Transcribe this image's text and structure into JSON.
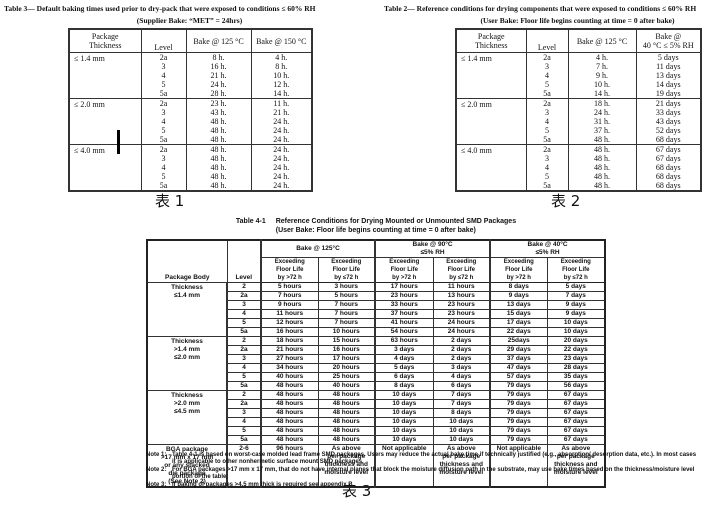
{
  "captions": {
    "table1": "表 1",
    "table2": "表 2",
    "table3": "表 3"
  },
  "table3": {
    "title": "Table 3— Default baking times used prior to dry-pack that were exposed to conditions ≤ 60% RH",
    "subtitle": "(Supplier Bake:  “MET” = 24hrs)",
    "columns": [
      "Package\nThickness",
      "Level",
      "Bake @ 125 °C",
      "Bake @ 150 °C"
    ],
    "groups": [
      {
        "thickness": "≤ 1.4 mm",
        "rows": [
          [
            "2a",
            "8 h.",
            "4 h."
          ],
          [
            "3",
            "16 h.",
            "8 h."
          ],
          [
            "4",
            "21 h.",
            "10 h."
          ],
          [
            "5",
            "24 h.",
            "12 h."
          ],
          [
            "5a",
            "28 h.",
            "14 h."
          ]
        ]
      },
      {
        "thickness": "≤ 2.0 mm",
        "rows": [
          [
            "2a",
            "23 h.",
            "11 h."
          ],
          [
            "3",
            "43 h.",
            "21 h."
          ],
          [
            "4",
            "48 h.",
            "24 h."
          ],
          [
            "5",
            "48 h.",
            "24 h."
          ],
          [
            "5a",
            "48 h.",
            "24 h."
          ]
        ]
      },
      {
        "thickness": "≤ 4.0 mm",
        "rows": [
          [
            "2a",
            "48 h.",
            "24 h."
          ],
          [
            "3",
            "48 h.",
            "24 h."
          ],
          [
            "4",
            "48 h.",
            "24 h."
          ],
          [
            "5",
            "48 h.",
            "24 h."
          ],
          [
            "5a",
            "48 h.",
            "24 h."
          ]
        ]
      }
    ]
  },
  "table2": {
    "title": "Table 2— Reference conditions for drying components that were exposed to conditions ≤ 60% RH",
    "subtitle": "(User Bake: Floor life begins counting at time = 0 after bake)",
    "columns": [
      "Package\nThickness",
      "Level",
      "Bake @ 125 °C",
      "Bake @\n40 °C ≤ 5% RH"
    ],
    "groups": [
      {
        "thickness": "≤ 1.4 mm",
        "rows": [
          [
            "2a",
            "4 h.",
            "5 days"
          ],
          [
            "3",
            "7 h.",
            "11 days"
          ],
          [
            "4",
            "9 h.",
            "13 days"
          ],
          [
            "5",
            "10 h.",
            "14 days"
          ],
          [
            "5a",
            "14 h.",
            "19 days"
          ]
        ]
      },
      {
        "thickness": "≤ 2.0 mm",
        "rows": [
          [
            "2a",
            "18 h.",
            "21 days"
          ],
          [
            "3",
            "24 h.",
            "33 days"
          ],
          [
            "4",
            "31 h.",
            "43 days"
          ],
          [
            "5",
            "37 h.",
            "52 days"
          ],
          [
            "5a",
            "48 h.",
            "68 days"
          ]
        ]
      },
      {
        "thickness": "≤ 4.0 mm",
        "rows": [
          [
            "2a",
            "48 h.",
            "67 days"
          ],
          [
            "3",
            "48 h.",
            "67 days"
          ],
          [
            "4",
            "48 h.",
            "68 days"
          ],
          [
            "5",
            "48 h.",
            "68 days"
          ],
          [
            "5a",
            "48 h.",
            "68 days"
          ]
        ]
      }
    ]
  },
  "table41": {
    "title_label": "Table 4-1",
    "title_text": "Reference Conditions for Drying Mounted or Unmounted SMD Packages",
    "subtitle": "(User Bake: Floor life begins counting at time = 0 after bake)",
    "col_headers": {
      "package_body": "Package Body",
      "level": "Level",
      "bake125": "Bake @ 125°C",
      "bake90": "Bake @ 90°C\n≤5% RH",
      "bake40": "Bake @ 40°C\n≤5% RH",
      "exceeding_gt": "Exceeding\nFloor Life\nby >72 h",
      "exceeding_le": "Exceeding\nFloor Life\nby ≤72 h"
    },
    "sections": [
      {
        "body": "Thickness\n≤1.4 mm",
        "rows": [
          [
            "2",
            "5 hours",
            "3 hours",
            "17 hours",
            "11 hours",
            "8 days",
            "5 days"
          ],
          [
            "2a",
            "7 hours",
            "5 hours",
            "23 hours",
            "13 hours",
            "9 days",
            "7 days"
          ],
          [
            "3",
            "9 hours",
            "7 hours",
            "33 hours",
            "23 hours",
            "13 days",
            "9 days"
          ],
          [
            "4",
            "11 hours",
            "7 hours",
            "37 hours",
            "23 hours",
            "15 days",
            "9 days"
          ],
          [
            "5",
            "12 hours",
            "7 hours",
            "41 hours",
            "24 hours",
            "17 days",
            "10 days"
          ],
          [
            "5a",
            "16 hours",
            "10 hours",
            "54 hours",
            "24 hours",
            "22 days",
            "10 days"
          ]
        ]
      },
      {
        "body": "Thickness\n>1.4 mm\n≤2.0 mm",
        "rows": [
          [
            "2",
            "18 hours",
            "15 hours",
            "63 hours",
            "2 days",
            "25days",
            "20 days"
          ],
          [
            "2a",
            "21 hours",
            "16 hours",
            "3 days",
            "2 days",
            "29 days",
            "22 days"
          ],
          [
            "3",
            "27 hours",
            "17 hours",
            "4 days",
            "2 days",
            "37 days",
            "23 days"
          ],
          [
            "4",
            "34 hours",
            "20 hours",
            "5 days",
            "3 days",
            "47 days",
            "28 days"
          ],
          [
            "5",
            "40 hours",
            "25 hours",
            "6 days",
            "4 days",
            "57 days",
            "35 days"
          ],
          [
            "5a",
            "48 hours",
            "40 hours",
            "8 days",
            "6 days",
            "79 days",
            "56 days"
          ]
        ]
      },
      {
        "body": "Thickness\n>2.0 mm\n≤4.5 mm",
        "rows": [
          [
            "2",
            "48 hours",
            "48 hours",
            "10 days",
            "7 days",
            "79 days",
            "67 days"
          ],
          [
            "2a",
            "48 hours",
            "48 hours",
            "10 days",
            "7 days",
            "79 days",
            "67 days"
          ],
          [
            "3",
            "48 hours",
            "48 hours",
            "10 days",
            "8 days",
            "79 days",
            "67 days"
          ],
          [
            "4",
            "48 hours",
            "48 hours",
            "10 days",
            "10 days",
            "79 days",
            "67 days"
          ],
          [
            "5",
            "48 hours",
            "48 hours",
            "10 days",
            "10 days",
            "79 days",
            "67 days"
          ],
          [
            "5a",
            "48 hours",
            "48 hours",
            "10 days",
            "10 days",
            "79 days",
            "67 days"
          ]
        ]
      },
      {
        "body": "BGA package\n>17 mm x 17 mm\nor any stacked\ndie package\n(See Note 2)",
        "rows": [
          [
            "2-6",
            "96 hours",
            "As above\nper package\nthickness and\nmoisture level",
            "Not applicable",
            "As above\nper package\nthickness and\nmoisture level",
            "Not applicable",
            "As above\nper package\nthickness and\nmoisture level"
          ]
        ]
      }
    ],
    "notes": [
      {
        "label": "Note 1:",
        "text": "Table 4-1 is based on worst-case molded lead frame SMD packages. Users may reduce the actual bake time if technically justified (e.g., absorption/ desorption data, etc.). In most cases it is applicable to other nonhermetic surface mount SMD packages."
      },
      {
        "label": "Note 2:",
        "text": "For BGA packages >17 mm x 17 mm, that do not have internal planes that block the moisture diffusion path in the substrate, may use bake times based on the thickness/moisture level portion of the table."
      },
      {
        "label": "Note 3:",
        "text": "If baking of packages >4.5 mm thick is required see appendix B."
      }
    ]
  }
}
